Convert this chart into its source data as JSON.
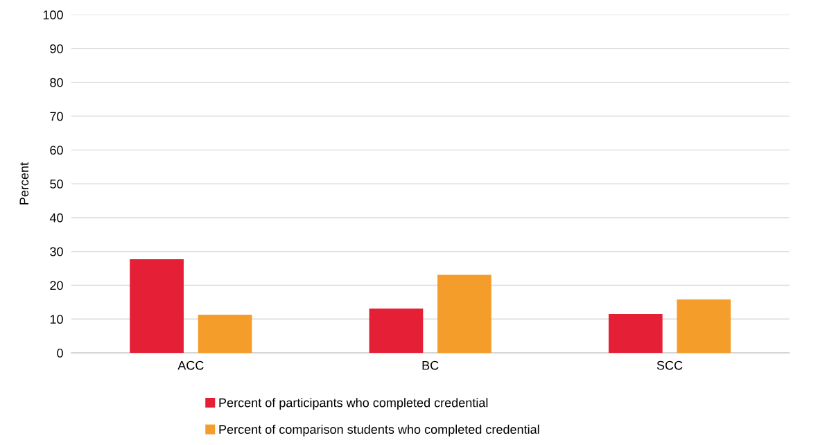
{
  "chart_data": {
    "type": "bar",
    "ylabel": "Percent",
    "categories": [
      "ACC",
      "BC",
      "SCC"
    ],
    "series": [
      {
        "name": "Percent of participants who completed credential",
        "color": "#e41f36",
        "values": [
          27.7,
          13.1,
          11.5
        ]
      },
      {
        "name": "Percent of comparison students who completed credential",
        "color": "#f59d2b",
        "values": [
          11.3,
          23.1,
          15.8
        ]
      }
    ],
    "ylim": [
      0,
      100
    ],
    "yticks": [
      0,
      10,
      20,
      30,
      40,
      50,
      60,
      70,
      80,
      90,
      100
    ],
    "grid": "y",
    "legend": "bottom"
  }
}
